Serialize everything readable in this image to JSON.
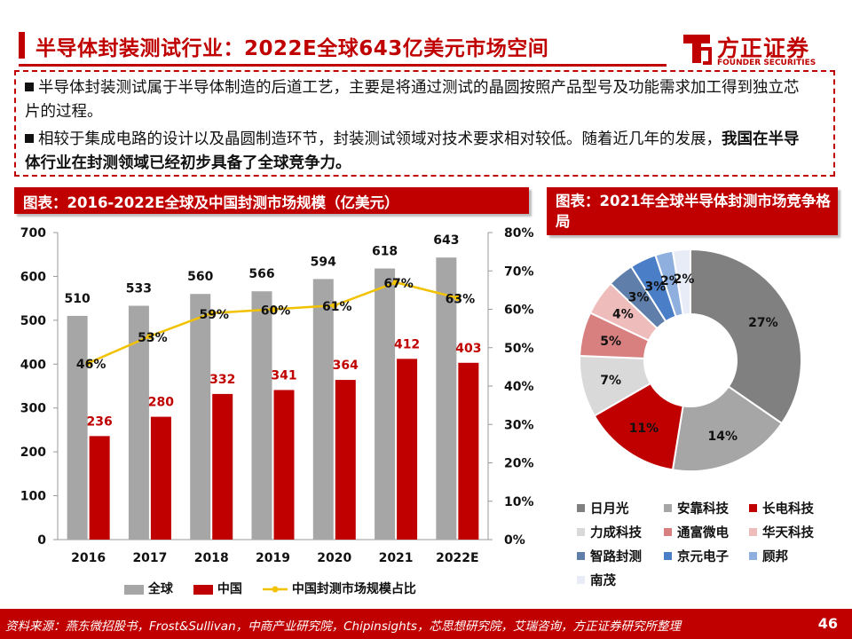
{
  "title": "半导体封装测试行业：2022E全球643亿美元市场空间",
  "logo": {
    "name": "方正证券",
    "en": "FOUNDER SECURITIES"
  },
  "bullets": [
    {
      "text": "半导体封装测试属于半导体制造的后道工艺，主要是将通过测试的晶圆按照产品型号及功能需求加工得到独立芯片的过程。",
      "bold": ""
    },
    {
      "text": "相较于集成电路的设计以及晶圆制造环节，封装测试领域对技术要求相对较低。随着近几年的发展，",
      "bold": "我国在半导体行业在封测领域已经初步具备了全球竞争力。"
    }
  ],
  "chart1_header": "图表：2016-2022E全球及中国封测市场规模（亿美元）",
  "chart2_header": "图表：2021年全球半导体封测市场竞争格局",
  "colors": {
    "brand": "#c00000",
    "global": "#a6a6a6",
    "china": "#c00000",
    "ratio": "#f2c200"
  },
  "chart_data": [
    {
      "type": "bar",
      "title": "2016-2022E全球及中国封测市场规模（亿美元）",
      "categories": [
        "2016",
        "2017",
        "2018",
        "2019",
        "2020",
        "2021",
        "2022E"
      ],
      "series": [
        {
          "name": "全球",
          "values": [
            510,
            533,
            560,
            566,
            594,
            618,
            643
          ],
          "labels": [
            "510",
            "533",
            "560",
            "566",
            "594",
            "618",
            "643"
          ]
        },
        {
          "name": "中国",
          "values": [
            236,
            280,
            332,
            341,
            364,
            412,
            403
          ],
          "labels": [
            "236",
            "280",
            "332",
            "341",
            "364",
            "412",
            "403"
          ]
        },
        {
          "name": "中国封测市场规模占比",
          "type": "line",
          "axis": "right",
          "values": [
            46,
            53,
            59,
            60,
            61,
            67,
            63
          ],
          "labels": [
            "46%",
            "53%",
            "59%",
            "60%",
            "61%",
            "67%",
            "63%"
          ]
        }
      ],
      "ylim": [
        0,
        700
      ],
      "yticks": [
        "0",
        "100",
        "200",
        "300",
        "400",
        "500",
        "600",
        "700"
      ],
      "y2lim": [
        0,
        80
      ],
      "y2ticks": [
        "0%",
        "10%",
        "20%",
        "30%",
        "40%",
        "50%",
        "60%",
        "70%",
        "80%"
      ],
      "legend": "bottom"
    },
    {
      "type": "pie",
      "title": "2021年全球半导体封测市场竞争格局",
      "donut": true,
      "slices": [
        {
          "name": "日月光",
          "value": 27,
          "label": "27%",
          "color": "#808080"
        },
        {
          "name": "安靠科技",
          "value": 14,
          "label": "14%",
          "color": "#a6a6a6"
        },
        {
          "name": "长电科技",
          "value": 11,
          "label": "11%",
          "color": "#c00000"
        },
        {
          "name": "力成科技",
          "value": 7,
          "label": "7%",
          "color": "#d9d9d9"
        },
        {
          "name": "通富微电",
          "value": 5,
          "label": "5%",
          "color": "#d88080"
        },
        {
          "name": "华天科技",
          "value": 4,
          "label": "4%",
          "color": "#efbcbc"
        },
        {
          "name": "智路封测",
          "value": 3,
          "label": "3%",
          "color": "#5f7eaa"
        },
        {
          "name": "京元电子",
          "value": 3,
          "label": "3%",
          "color": "#4a7fc8"
        },
        {
          "name": "顾邦",
          "value": 2,
          "label": "2%",
          "color": "#8fb0de"
        },
        {
          "name": "南茂",
          "value": 2,
          "label": "2%",
          "color": "#e7ecf6"
        }
      ],
      "legend": "bottom"
    }
  ],
  "footer": "资料来源：燕东微招股书，Frost&Sullivan，中商产业研究院，Chipinsights，芯思想研究院，艾瑞咨询，方正证券研究所整理",
  "page_number": "46"
}
